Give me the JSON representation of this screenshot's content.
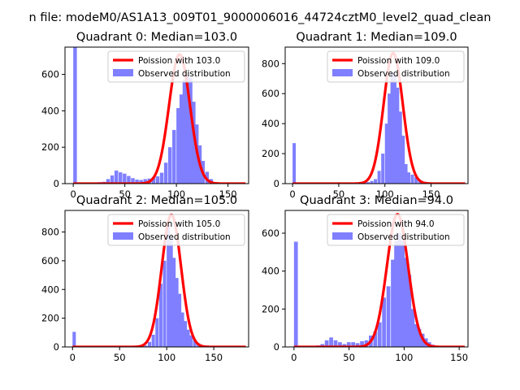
{
  "figure": {
    "suptitle": "n file: modeM0/AS1A13_009T01_9000006016_44724cztM0_level2_quad_clean"
  },
  "colors": {
    "hist": "#7f7fff",
    "fit": "#ff0000",
    "axes": "#000000"
  },
  "chart_data": [
    {
      "type": "bar",
      "title": "Quadrant 0: Median=103.0",
      "median": 103.0,
      "xlim": [
        -8,
        170
      ],
      "ylim": [
        0,
        750
      ],
      "xticks": [
        0,
        50,
        100,
        150
      ],
      "yticks": [
        0,
        200,
        400,
        600
      ],
      "legend": {
        "position": "top-right",
        "fit_label": "Poission with 103.0",
        "hist_label": "Observed distribution"
      },
      "bin_width": 3.5,
      "bins": [
        [
          0,
          760
        ],
        [
          4,
          5
        ],
        [
          8,
          5
        ],
        [
          12,
          5
        ],
        [
          16,
          5
        ],
        [
          20,
          5
        ],
        [
          24,
          8
        ],
        [
          28,
          10
        ],
        [
          32,
          25
        ],
        [
          36,
          45
        ],
        [
          40,
          72
        ],
        [
          44,
          62
        ],
        [
          48,
          55
        ],
        [
          52,
          42
        ],
        [
          56,
          30
        ],
        [
          60,
          22
        ],
        [
          64,
          20
        ],
        [
          68,
          25
        ],
        [
          72,
          28
        ],
        [
          76,
          35
        ],
        [
          80,
          40
        ],
        [
          84,
          60
        ],
        [
          88,
          115
        ],
        [
          92,
          200
        ],
        [
          96,
          295
        ],
        [
          100,
          415
        ],
        [
          103,
          490
        ],
        [
          106,
          570
        ],
        [
          109,
          600
        ],
        [
          112,
          580
        ],
        [
          115,
          450
        ],
        [
          118,
          325
        ],
        [
          121,
          210
        ],
        [
          124,
          125
        ],
        [
          128,
          65
        ],
        [
          132,
          25
        ],
        [
          136,
          8
        ]
      ],
      "poisson_peak": 710
    },
    {
      "type": "bar",
      "title": "Quadrant 1: Median=109.0",
      "median": 109.0,
      "xlim": [
        -8,
        190
      ],
      "ylim": [
        0,
        910
      ],
      "xticks": [
        0,
        50,
        100,
        150
      ],
      "yticks": [
        0,
        200,
        400,
        600,
        800
      ],
      "legend": {
        "position": "top-right",
        "fit_label": "Poission with 109.0",
        "hist_label": "Observed distribution"
      },
      "bin_width": 3.5,
      "bins": [
        [
          0,
          270
        ],
        [
          72,
          5
        ],
        [
          76,
          8
        ],
        [
          80,
          10
        ],
        [
          84,
          18
        ],
        [
          88,
          30
        ],
        [
          92,
          85
        ],
        [
          96,
          200
        ],
        [
          100,
          400
        ],
        [
          103,
          600
        ],
        [
          106,
          740
        ],
        [
          109,
          720
        ],
        [
          112,
          640
        ],
        [
          115,
          480
        ],
        [
          118,
          320
        ],
        [
          121,
          130
        ],
        [
          124,
          75
        ],
        [
          128,
          60
        ],
        [
          132,
          45
        ],
        [
          136,
          25
        ],
        [
          140,
          12
        ],
        [
          144,
          5
        ]
      ],
      "poisson_peak": 870
    },
    {
      "type": "bar",
      "title": "Quadrant 2: Median=105.0",
      "median": 105.0,
      "xlim": [
        -8,
        187
      ],
      "ylim": [
        0,
        950
      ],
      "xticks": [
        0,
        50,
        100,
        150
      ],
      "yticks": [
        0,
        200,
        400,
        600,
        800
      ],
      "legend": {
        "position": "top-right",
        "fit_label": "Poission with 105.0",
        "hist_label": "Observed distribution"
      },
      "bin_width": 3.5,
      "bins": [
        [
          0,
          105
        ],
        [
          76,
          10
        ],
        [
          80,
          35
        ],
        [
          84,
          85
        ],
        [
          88,
          200
        ],
        [
          92,
          440
        ],
        [
          96,
          600
        ],
        [
          100,
          850
        ],
        [
          103,
          760
        ],
        [
          106,
          620
        ],
        [
          109,
          480
        ],
        [
          112,
          370
        ],
        [
          115,
          240
        ],
        [
          118,
          180
        ],
        [
          121,
          120
        ],
        [
          124,
          80
        ],
        [
          128,
          50
        ],
        [
          132,
          25
        ],
        [
          136,
          12
        ],
        [
          140,
          5
        ]
      ],
      "poisson_peak": 920
    },
    {
      "type": "bar",
      "title": "Quadrant 3: Median=94.0",
      "median": 94.0,
      "xlim": [
        -8,
        158
      ],
      "ylim": [
        0,
        720
      ],
      "xticks": [
        0,
        50,
        100,
        150
      ],
      "yticks": [
        0,
        200,
        400,
        600
      ],
      "legend": {
        "position": "top-right",
        "fit_label": "Poission with 94.0",
        "hist_label": "Observed distribution"
      },
      "bin_width": 3.5,
      "bins": [
        [
          0,
          555
        ],
        [
          4,
          5
        ],
        [
          8,
          5
        ],
        [
          12,
          5
        ],
        [
          16,
          5
        ],
        [
          20,
          8
        ],
        [
          24,
          15
        ],
        [
          28,
          35
        ],
        [
          32,
          50
        ],
        [
          36,
          35
        ],
        [
          40,
          25
        ],
        [
          44,
          15
        ],
        [
          48,
          25
        ],
        [
          52,
          25
        ],
        [
          56,
          20
        ],
        [
          60,
          30
        ],
        [
          64,
          35
        ],
        [
          68,
          60
        ],
        [
          72,
          80
        ],
        [
          76,
          130
        ],
        [
          80,
          260
        ],
        [
          84,
          320
        ],
        [
          88,
          460
        ],
        [
          91,
          560
        ],
        [
          94,
          600
        ],
        [
          97,
          560
        ],
        [
          100,
          470
        ],
        [
          103,
          380
        ],
        [
          106,
          200
        ],
        [
          109,
          120
        ],
        [
          112,
          95
        ],
        [
          115,
          70
        ],
        [
          118,
          45
        ],
        [
          121,
          25
        ],
        [
          124,
          12
        ],
        [
          128,
          5
        ]
      ],
      "poisson_peak": 700
    }
  ]
}
